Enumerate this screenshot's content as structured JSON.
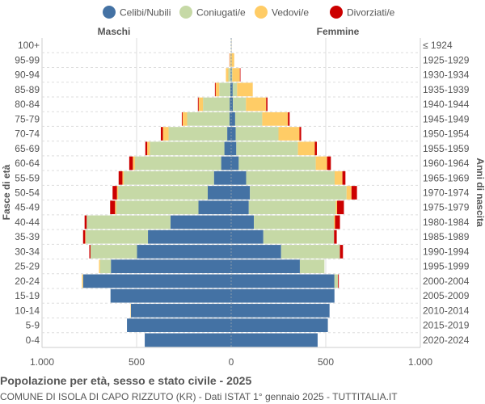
{
  "chart_data": {
    "type": "bar",
    "orientation": "horizontal-pyramid",
    "title": "Popolazione per età, sesso e stato civile - 2025",
    "subtitle": "COMUNE DI ISOLA DI CAPO RIZZUTO (KR) - Dati ISTAT 1° gennaio 2025 - TUTTITALIA.IT",
    "ylabel_left": "Fasce di età",
    "ylabel_right": "Anni di nascita",
    "left_label": "Maschi",
    "right_label": "Femmine",
    "xlim": [
      -1000,
      1000
    ],
    "x_ticks": [
      "1.000",
      "500",
      "0",
      "500",
      "1.000"
    ],
    "x_tick_values": [
      -1000,
      -500,
      0,
      500,
      1000
    ],
    "grid": true,
    "legend_position": "top",
    "categories": [
      "100+",
      "95-99",
      "90-94",
      "85-89",
      "80-84",
      "75-79",
      "70-74",
      "65-69",
      "60-64",
      "55-59",
      "50-54",
      "45-49",
      "40-44",
      "35-39",
      "30-34",
      "25-29",
      "20-24",
      "15-19",
      "10-14",
      "5-9",
      "0-4"
    ],
    "birth_years": [
      "≤ 1924",
      "1925-1929",
      "1930-1934",
      "1935-1939",
      "1940-1944",
      "1945-1949",
      "1950-1954",
      "1955-1959",
      "1960-1964",
      "1965-1969",
      "1970-1974",
      "1975-1979",
      "1980-1984",
      "1985-1989",
      "1990-1994",
      "1995-1999",
      "2000-2004",
      "2005-2009",
      "2010-2014",
      "2015-2019",
      "2020-2024"
    ],
    "series": [
      {
        "name": "Celibi/Nubili",
        "color": "#4472a4",
        "males": [
          0,
          0,
          3,
          5,
          8,
          9,
          21,
          36,
          53,
          91,
          124,
          173,
          321,
          440,
          498,
          636,
          783,
          638,
          530,
          551,
          457
        ],
        "females": [
          1,
          1,
          3,
          8,
          9,
          21,
          24,
          27,
          40,
          79,
          99,
          93,
          120,
          170,
          264,
          363,
          546,
          546,
          520,
          511,
          457
        ]
      },
      {
        "name": "Coniugati/e",
        "color": "#c6d9a6",
        "males": [
          1,
          3,
          12,
          58,
          141,
          224,
          310,
          394,
          456,
          477,
          474,
          434,
          443,
          329,
          246,
          57,
          0,
          0,
          0,
          0,
          0
        ],
        "females": [
          0,
          1,
          3,
          23,
          69,
          143,
          226,
          326,
          407,
          468,
          511,
          460,
          423,
          374,
          311,
          130,
          19,
          0,
          0,
          0,
          0
        ]
      },
      {
        "name": "Vedovi/e",
        "color": "#ffcc66",
        "males": [
          0,
          5,
          13,
          19,
          23,
          24,
          30,
          14,
          11,
          7,
          6,
          7,
          0,
          3,
          0,
          6,
          6,
          0,
          2,
          0,
          0
        ],
        "females": [
          1,
          14,
          40,
          83,
          107,
          136,
          111,
          89,
          60,
          41,
          26,
          7,
          6,
          0,
          0,
          0,
          0,
          0,
          0,
          0,
          0
        ]
      },
      {
        "name": "Divorziati/e",
        "color": "#cc0000",
        "males": [
          0,
          1,
          0,
          4,
          4,
          4,
          11,
          10,
          19,
          20,
          23,
          26,
          11,
          11,
          6,
          0,
          0,
          0,
          0,
          0,
          0
        ],
        "females": [
          0,
          0,
          3,
          0,
          7,
          9,
          9,
          11,
          20,
          16,
          29,
          36,
          26,
          14,
          16,
          0,
          4,
          0,
          0,
          0,
          0
        ]
      }
    ]
  }
}
